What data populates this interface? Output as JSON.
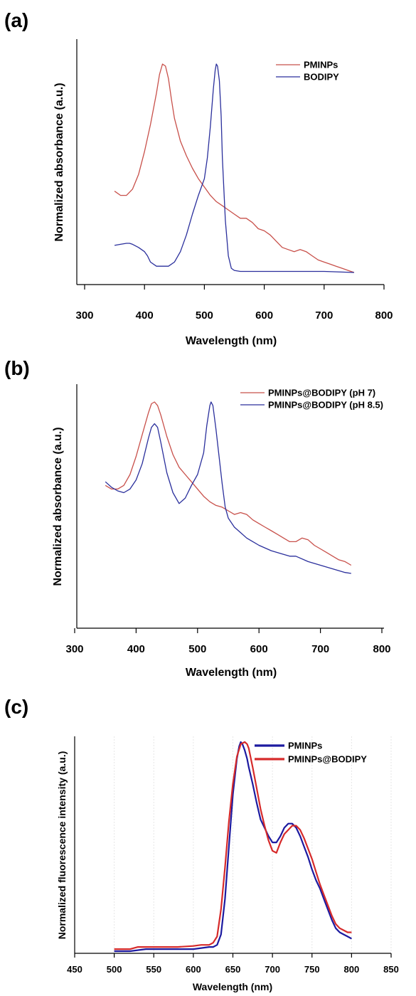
{
  "chart_data": [
    {
      "panel_label": "(a)",
      "type": "line",
      "xlabel": "Wavelength (nm)",
      "ylabel": "Normalized absorbance (a.u.)",
      "xlim": [
        300,
        800
      ],
      "xticks": [
        "300",
        "400",
        "500",
        "600",
        "700",
        "800"
      ],
      "grid": false,
      "legend_position": "top-right",
      "series": [
        {
          "name": "PMINPs",
          "color": "#c8504a",
          "x": [
            350,
            360,
            370,
            380,
            390,
            400,
            410,
            420,
            425,
            430,
            435,
            440,
            445,
            450,
            460,
            470,
            480,
            490,
            500,
            510,
            520,
            530,
            540,
            550,
            560,
            570,
            580,
            590,
            600,
            610,
            620,
            630,
            640,
            650,
            660,
            670,
            680,
            690,
            700,
            710,
            720,
            730,
            740,
            750
          ],
          "y": [
            0.39,
            0.37,
            0.37,
            0.4,
            0.47,
            0.58,
            0.71,
            0.86,
            0.95,
            1.0,
            0.99,
            0.93,
            0.83,
            0.74,
            0.63,
            0.56,
            0.5,
            0.45,
            0.41,
            0.37,
            0.34,
            0.32,
            0.3,
            0.28,
            0.26,
            0.26,
            0.24,
            0.21,
            0.2,
            0.18,
            0.15,
            0.12,
            0.11,
            0.1,
            0.11,
            0.1,
            0.08,
            0.06,
            0.05,
            0.04,
            0.03,
            0.02,
            0.01,
            0.0
          ]
        },
        {
          "name": "BODIPY",
          "color": "#2a2f9c",
          "x": [
            350,
            360,
            370,
            375,
            380,
            390,
            400,
            405,
            410,
            420,
            430,
            440,
            450,
            460,
            470,
            480,
            490,
            500,
            505,
            510,
            515,
            518,
            520,
            522,
            525,
            528,
            530,
            535,
            540,
            545,
            550,
            560,
            600,
            650,
            700,
            750
          ],
          "y": [
            0.13,
            0.135,
            0.14,
            0.14,
            0.135,
            0.12,
            0.1,
            0.08,
            0.05,
            0.03,
            0.03,
            0.03,
            0.05,
            0.1,
            0.18,
            0.28,
            0.37,
            0.45,
            0.55,
            0.7,
            0.88,
            0.97,
            1.0,
            0.99,
            0.92,
            0.75,
            0.55,
            0.25,
            0.08,
            0.02,
            0.01,
            0.005,
            0.005,
            0.005,
            0.005,
            0.0
          ]
        }
      ]
    },
    {
      "panel_label": "(b)",
      "type": "line",
      "xlabel": "Wavelength (nm)",
      "ylabel": "Normalized absorbance (a.u.)",
      "xlim": [
        300,
        800
      ],
      "xticks": [
        "300",
        "400",
        "500",
        "600",
        "700",
        "800"
      ],
      "grid": false,
      "legend_position": "top-right",
      "series": [
        {
          "name": "PMINPs@BODIPY (pH 7)",
          "color": "#c8504a",
          "x": [
            350,
            360,
            370,
            380,
            390,
            400,
            410,
            420,
            425,
            430,
            435,
            440,
            450,
            460,
            470,
            480,
            490,
            500,
            510,
            520,
            530,
            540,
            550,
            560,
            570,
            580,
            590,
            600,
            610,
            620,
            630,
            640,
            650,
            660,
            670,
            680,
            690,
            700,
            710,
            720,
            730,
            740,
            750
          ],
          "y": [
            0.54,
            0.52,
            0.52,
            0.54,
            0.6,
            0.7,
            0.82,
            0.94,
            0.99,
            1.0,
            0.98,
            0.93,
            0.81,
            0.71,
            0.64,
            0.6,
            0.56,
            0.52,
            0.48,
            0.45,
            0.43,
            0.42,
            0.4,
            0.38,
            0.39,
            0.38,
            0.35,
            0.33,
            0.31,
            0.29,
            0.27,
            0.25,
            0.23,
            0.23,
            0.25,
            0.24,
            0.21,
            0.19,
            0.17,
            0.15,
            0.13,
            0.12,
            0.1
          ]
        },
        {
          "name": "PMINPs@BODIPY (pH 8.5)",
          "color": "#2a2f9c",
          "x": [
            350,
            360,
            370,
            380,
            390,
            400,
            410,
            420,
            425,
            430,
            435,
            440,
            450,
            460,
            470,
            480,
            490,
            500,
            510,
            515,
            520,
            522,
            525,
            530,
            540,
            545,
            550,
            560,
            570,
            580,
            590,
            600,
            620,
            640,
            650,
            660,
            680,
            700,
            720,
            740,
            750
          ],
          "y": [
            0.56,
            0.53,
            0.51,
            0.5,
            0.52,
            0.57,
            0.66,
            0.8,
            0.86,
            0.88,
            0.86,
            0.78,
            0.61,
            0.5,
            0.44,
            0.47,
            0.54,
            0.6,
            0.72,
            0.87,
            0.98,
            1.0,
            0.98,
            0.85,
            0.55,
            0.42,
            0.36,
            0.31,
            0.28,
            0.25,
            0.23,
            0.21,
            0.18,
            0.16,
            0.15,
            0.15,
            0.12,
            0.1,
            0.08,
            0.06,
            0.055
          ]
        }
      ]
    },
    {
      "panel_label": "(c)",
      "type": "line",
      "xlabel": "Wavelength (nm)",
      "ylabel": "Normalized fluorescence intensity (a.u.)",
      "xlim": [
        450,
        850
      ],
      "xticks": [
        "450",
        "500",
        "550",
        "600",
        "650",
        "700",
        "750",
        "800",
        "850"
      ],
      "grid": true,
      "legend_position": "top-right",
      "series": [
        {
          "name": "PMINPs",
          "color": "#1c1aa0",
          "x": [
            500,
            520,
            540,
            560,
            580,
            600,
            610,
            620,
            625,
            630,
            635,
            640,
            645,
            650,
            655,
            658,
            660,
            662,
            665,
            668,
            670,
            675,
            680,
            685,
            690,
            695,
            700,
            705,
            710,
            715,
            720,
            725,
            730,
            735,
            740,
            745,
            750,
            755,
            760,
            765,
            770,
            775,
            780,
            785,
            790,
            795,
            800
          ],
          "y": [
            0.0,
            0.0,
            0.01,
            0.01,
            0.01,
            0.01,
            0.015,
            0.02,
            0.02,
            0.03,
            0.08,
            0.25,
            0.5,
            0.75,
            0.92,
            0.98,
            1.0,
            0.99,
            0.96,
            0.92,
            0.88,
            0.8,
            0.71,
            0.63,
            0.59,
            0.55,
            0.52,
            0.52,
            0.55,
            0.59,
            0.61,
            0.61,
            0.59,
            0.55,
            0.5,
            0.45,
            0.39,
            0.34,
            0.3,
            0.25,
            0.2,
            0.15,
            0.11,
            0.09,
            0.08,
            0.07,
            0.06
          ]
        },
        {
          "name": "PMINPs@BODIPY",
          "color": "#d62a2a",
          "x": [
            500,
            520,
            530,
            540,
            560,
            580,
            600,
            610,
            620,
            625,
            630,
            635,
            640,
            645,
            650,
            655,
            660,
            665,
            668,
            670,
            675,
            680,
            685,
            690,
            695,
            700,
            705,
            710,
            715,
            720,
            725,
            730,
            735,
            740,
            745,
            750,
            755,
            760,
            765,
            770,
            775,
            780,
            785,
            790,
            795,
            800
          ],
          "y": [
            0.01,
            0.01,
            0.02,
            0.02,
            0.02,
            0.02,
            0.025,
            0.03,
            0.03,
            0.04,
            0.07,
            0.2,
            0.4,
            0.62,
            0.8,
            0.93,
            0.99,
            1.0,
            0.99,
            0.97,
            0.88,
            0.78,
            0.68,
            0.6,
            0.53,
            0.48,
            0.47,
            0.52,
            0.56,
            0.58,
            0.6,
            0.6,
            0.58,
            0.54,
            0.49,
            0.44,
            0.38,
            0.32,
            0.27,
            0.22,
            0.17,
            0.13,
            0.11,
            0.1,
            0.09,
            0.09
          ]
        }
      ]
    }
  ]
}
